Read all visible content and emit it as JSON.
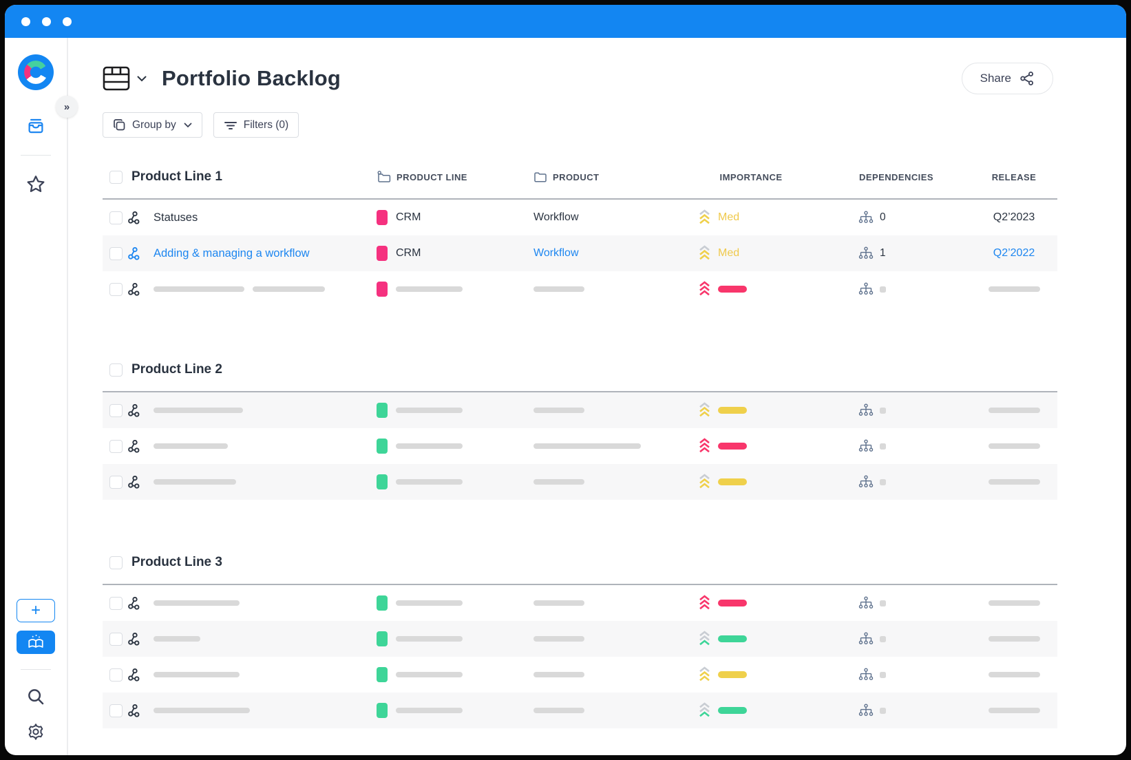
{
  "window": {
    "traffic_dots": 3
  },
  "colors": {
    "brand_blue": "#1386F2",
    "link_blue": "#1D86F0",
    "pink_square": "#F5317F",
    "imp_pink": "#F8366B",
    "imp_yellow": "#EFD04B",
    "imp_yellow_text": "#EFC94C",
    "imp_green": "#3ED598",
    "green_square": "#3ED598",
    "chevron_gray": "#C9CDD3",
    "skeleton_gray": "#D9D9D9",
    "row_alt_bg": "#F7F7F8"
  },
  "icons": {
    "expand_sidebar": "»",
    "plus": "+",
    "chevron_down": "⌄"
  },
  "header": {
    "title": "Portfolio Backlog",
    "share_label": "Share"
  },
  "toolbar": {
    "group_by_label": "Group by",
    "filters_label": "Filters (0)"
  },
  "table": {
    "columns": [
      "PRODUCT LINE",
      "PRODUCT",
      "IMPORTANCE",
      "DEPENDENCIES",
      "RELEASE"
    ],
    "sections": [
      {
        "title": "Product Line 1",
        "show_columns": true,
        "rows": [
          {
            "name": "Statuses",
            "name_link": false,
            "icon": "dark",
            "product_line": {
              "color": "#F5317F",
              "text": "CRM"
            },
            "product": {
              "text": "Workflow",
              "link": false
            },
            "importance": {
              "level": "med",
              "label": "Med"
            },
            "dependencies": {
              "count": "0"
            },
            "release": {
              "text": "Q2’2023",
              "link": false
            }
          },
          {
            "name": "Adding & managing a workflow",
            "name_link": true,
            "icon": "blue",
            "product_line": {
              "color": "#F5317F",
              "text": "CRM"
            },
            "product": {
              "text": "Workflow",
              "link": true
            },
            "importance": {
              "level": "med",
              "label": "Med"
            },
            "dependencies": {
              "count": "1"
            },
            "release": {
              "text": "Q2’2022",
              "link": true
            }
          },
          {
            "skeleton": true,
            "icon": "dark",
            "name_bars": [
              132,
              105
            ],
            "product_line": {
              "color": "#F5317F",
              "bar": 97
            },
            "product": {
              "bar": 74
            },
            "importance": {
              "level": "high",
              "pill": true
            },
            "dependencies": {
              "dot": true
            },
            "release": {
              "bar": 75
            }
          }
        ]
      },
      {
        "title": "Product Line 2",
        "show_columns": false,
        "rows": [
          {
            "skeleton": true,
            "icon": "dark",
            "name_bars": [
              130
            ],
            "product_line": {
              "color": "#3ED598",
              "bar": 97
            },
            "product": {
              "bar": 74
            },
            "importance": {
              "level": "med",
              "pill": true
            },
            "dependencies": {
              "dot": true
            },
            "release": {
              "bar": 75
            }
          },
          {
            "skeleton": true,
            "icon": "dark",
            "name_bars": [
              108
            ],
            "product_line": {
              "color": "#3ED598",
              "bar": 97
            },
            "product": {
              "bar": 156
            },
            "importance": {
              "level": "high",
              "pill": true
            },
            "dependencies": {
              "dot": true
            },
            "release": {
              "bar": 75
            }
          },
          {
            "skeleton": true,
            "icon": "dark",
            "name_bars": [
              120
            ],
            "product_line": {
              "color": "#3ED598",
              "bar": 97
            },
            "product": {
              "bar": 74
            },
            "importance": {
              "level": "med",
              "pill": true
            },
            "dependencies": {
              "dot": true
            },
            "release": {
              "bar": 75
            }
          }
        ]
      },
      {
        "title": "Product Line 3",
        "show_columns": false,
        "rows": [
          {
            "skeleton": true,
            "icon": "dark",
            "name_bars": [
              125
            ],
            "product_line": {
              "color": "#3ED598",
              "bar": 97
            },
            "product": {
              "bar": 74
            },
            "importance": {
              "level": "high",
              "pill": true
            },
            "dependencies": {
              "dot": true
            },
            "release": {
              "bar": 75
            }
          },
          {
            "skeleton": true,
            "icon": "dark",
            "name_bars": [
              68
            ],
            "product_line": {
              "color": "#3ED598",
              "bar": 97
            },
            "product": {
              "bar": 74
            },
            "importance": {
              "level": "low",
              "pill": true
            },
            "dependencies": {
              "dot": true
            },
            "release": {
              "bar": 75
            }
          },
          {
            "skeleton": true,
            "icon": "dark",
            "name_bars": [
              125
            ],
            "product_line": {
              "color": "#3ED598",
              "bar": 97
            },
            "product": {
              "bar": 74
            },
            "importance": {
              "level": "med",
              "pill": true
            },
            "dependencies": {
              "dot": true
            },
            "release": {
              "bar": 75
            }
          },
          {
            "skeleton": true,
            "icon": "dark",
            "name_bars": [
              140
            ],
            "product_line": {
              "color": "#3ED598",
              "bar": 97
            },
            "product": {
              "bar": 74
            },
            "importance": {
              "level": "low",
              "pill": true
            },
            "dependencies": {
              "dot": true
            },
            "release": {
              "bar": 75
            }
          }
        ]
      }
    ]
  }
}
